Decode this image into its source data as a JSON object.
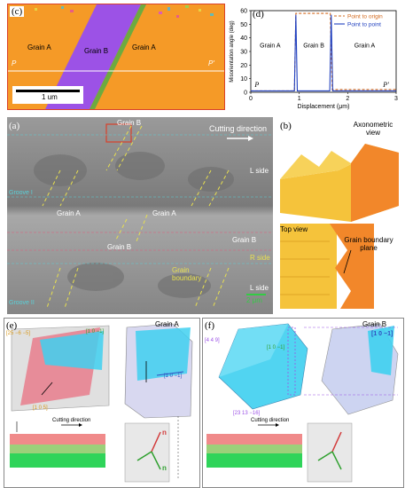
{
  "panel_c": {
    "label": "(c)",
    "grain_a_left": "Grain A",
    "grain_b": "Grain B",
    "grain_a_right": "Grain A",
    "p_left": "P",
    "p_right": "P'",
    "scalebar": "1 um"
  },
  "panel_d": {
    "label": "(d)",
    "chart_data": {
      "type": "line",
      "xlabel": "Displacement (μm)",
      "ylabel": "Misorientation angle (deg)",
      "xlim": [
        0,
        3
      ],
      "ylim": [
        0,
        60
      ],
      "xticks": [
        "0",
        "1",
        "2",
        "3"
      ],
      "yticks": [
        "0",
        "10",
        "20",
        "30",
        "40",
        "50",
        "60"
      ],
      "legend_position": "top-right",
      "series": [
        {
          "name": "Point to origin",
          "color": "#d2691e",
          "style": "dashed",
          "x": [
            0,
            0.9,
            0.93,
            0.97,
            1.6,
            1.64,
            1.68,
            3
          ],
          "y": [
            1,
            1,
            58,
            58,
            58,
            58,
            2,
            2
          ]
        },
        {
          "name": "Point to point",
          "color": "#1f3fbf",
          "style": "solid",
          "x": [
            0,
            0.9,
            0.93,
            0.96,
            1.63,
            1.66,
            1.69,
            3
          ],
          "y": [
            1,
            1,
            57,
            1,
            1,
            57,
            1,
            1
          ]
        }
      ],
      "annotations": [
        "Grain A",
        "Grain B",
        "Grain A",
        "P",
        "P'"
      ]
    }
  },
  "panel_a": {
    "label": "(a)",
    "grain_b_top": "Grain B",
    "cutting_direction": "Cutting direction",
    "groove1": "Groove I",
    "l_side_top": "L side",
    "grain_a_1": "Grain A",
    "grain_a_2": "Grain A",
    "grain_b_mid": "Grain B",
    "grain_b_right": "Grain B",
    "r_side": "R side",
    "grain_boundary": "Grain boundary",
    "l_side_bottom": "L side",
    "scalebar": "2 μm",
    "groove2": "Groove II"
  },
  "panel_b": {
    "label": "(b)",
    "axonometric": "Axonometric view",
    "top_view": "Top view",
    "gb_plane": "Grain boundary plane"
  },
  "panel_e": {
    "label": "(e)",
    "title": "Grain A",
    "dir1": "[25 −6 −5]",
    "dir2": "[1 0 −1]",
    "dir3": "[1 0 5]",
    "dir4": "[1 0 −1]",
    "cutting_direction": "Cutting direction",
    "n_left": "n",
    "n_right": "n"
  },
  "panel_f": {
    "label": "(f)",
    "title": "Grain B",
    "dir1": "[4 4 9]",
    "dir2": "[1 0 −1]",
    "dir3": "[23 13 −16]",
    "dir4": "[1 0 −1]",
    "cutting_direction": "Cutting direction"
  },
  "colors": {
    "grain_orange": "#f59a27",
    "grain_purple": "#9c52e6",
    "sem_gray": "#8c8c8c",
    "block_yellow": "#f5c33b",
    "block_orange": "#f2872a",
    "red_band": "#f08a8a",
    "green_band": "#2fd45a",
    "cube_cyan": "#3fd0f0"
  }
}
